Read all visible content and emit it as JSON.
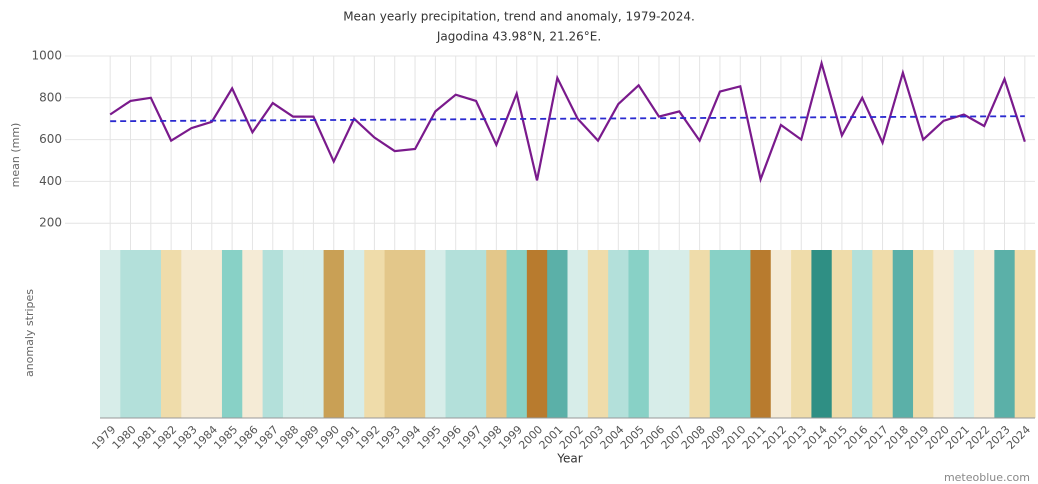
{
  "chart_data": {
    "type": "line",
    "title": "Mean yearly precipitation, trend and anomaly, 1979-2024.",
    "subtitle": "Jagodina 43.98°N, 21.26°E.",
    "y_label": "mean (mm)",
    "stripes_label": "anomaly stripes",
    "x_label": "Year",
    "credit": "meteoblue.com",
    "categories": [
      "1979",
      "1980",
      "1981",
      "1982",
      "1983",
      "1984",
      "1985",
      "1986",
      "1987",
      "1988",
      "1989",
      "1990",
      "1991",
      "1992",
      "1993",
      "1994",
      "1995",
      "1996",
      "1997",
      "1998",
      "1999",
      "2000",
      "2001",
      "2002",
      "2003",
      "2004",
      "2005",
      "2006",
      "2007",
      "2008",
      "2009",
      "2010",
      "2011",
      "2012",
      "2013",
      "2014",
      "2015",
      "2016",
      "2017",
      "2018",
      "2019",
      "2020",
      "2021",
      "2022",
      "2023",
      "2024"
    ],
    "series": [
      {
        "color": "#7a1a8c",
        "values": [
          720,
          785,
          800,
          595,
          655,
          685,
          845,
          635,
          775,
          710,
          710,
          495,
          700,
          610,
          545,
          555,
          735,
          815,
          785,
          575,
          820,
          405,
          895,
          700,
          595,
          770,
          860,
          710,
          735,
          595,
          830,
          855,
          410,
          670,
          600,
          965,
          620,
          800,
          585,
          920,
          600,
          690,
          720,
          665,
          890,
          590
        ]
      }
    ],
    "trend": {
      "color": "#2a2ad0",
      "values": [
        688,
        712
      ]
    },
    "stripe_colors": [
      "#d7ede9",
      "#b3e0da",
      "#b3e0da",
      "#efdcaa",
      "#f5ebd6",
      "#f5ebd6",
      "#88d1c6",
      "#f5ebd6",
      "#b3e0da",
      "#d7ede9",
      "#d7ede9",
      "#c9a055",
      "#d7ede9",
      "#efdcaa",
      "#e3c78a",
      "#e3c78a",
      "#d7ede9",
      "#b3e0da",
      "#b3e0da",
      "#e3c78a",
      "#88d1c6",
      "#b87b2e",
      "#5bb0a8",
      "#d7ede9",
      "#efdcaa",
      "#b3e0da",
      "#88d1c6",
      "#d7ede9",
      "#d7ede9",
      "#efdcaa",
      "#88d1c6",
      "#88d1c6",
      "#b87b2e",
      "#f5ebd6",
      "#efdcaa",
      "#2f8f84",
      "#efdcaa",
      "#b3e0da",
      "#efdcaa",
      "#5bb0a8",
      "#efdcaa",
      "#f5ebd6",
      "#d7ede9",
      "#f5ebd6",
      "#5bb0a8",
      "#efdcaa"
    ],
    "ylim": [
      0,
      1000
    ],
    "yticks": [
      200,
      400,
      600,
      800,
      1000
    ],
    "grid": true
  }
}
